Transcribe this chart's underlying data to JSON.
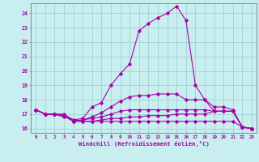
{
  "xlabel": "Windchill (Refroidissement éolien,°C)",
  "bg_color": "#c8eef0",
  "grid_color": "#99cccc",
  "line_color": "#aa00aa",
  "xlim": [
    -0.5,
    23.5
  ],
  "ylim": [
    15.7,
    24.7
  ],
  "yticks": [
    16,
    17,
    18,
    19,
    20,
    21,
    22,
    23,
    24
  ],
  "xticks": [
    0,
    1,
    2,
    3,
    4,
    5,
    6,
    7,
    8,
    9,
    10,
    11,
    12,
    13,
    14,
    15,
    16,
    17,
    18,
    19,
    20,
    21,
    22,
    23
  ],
  "lines": [
    {
      "x": [
        0,
        1,
        2,
        3,
        4,
        5,
        6,
        7,
        8,
        9,
        10,
        11,
        12,
        13,
        14,
        15,
        16,
        17,
        18,
        19,
        20,
        21,
        22,
        23
      ],
      "y": [
        17.3,
        17.0,
        17.0,
        16.8,
        16.6,
        16.7,
        17.5,
        17.8,
        19.0,
        19.8,
        20.5,
        22.8,
        23.3,
        23.7,
        24.0,
        24.5,
        23.5,
        19.0,
        18.0,
        17.2,
        17.2,
        17.2,
        16.1,
        16.0
      ]
    },
    {
      "x": [
        0,
        1,
        2,
        3,
        4,
        5,
        6,
        7,
        8,
        9,
        10,
        11,
        12,
        13,
        14,
        15,
        16,
        17,
        18,
        19,
        20,
        21,
        22,
        23
      ],
      "y": [
        17.3,
        17.0,
        17.0,
        16.9,
        16.5,
        16.6,
        16.8,
        17.1,
        17.5,
        17.9,
        18.2,
        18.3,
        18.3,
        18.4,
        18.4,
        18.4,
        18.0,
        18.0,
        18.0,
        17.5,
        17.5,
        17.3,
        16.1,
        16.0
      ]
    },
    {
      "x": [
        0,
        1,
        2,
        3,
        4,
        5,
        6,
        7,
        8,
        9,
        10,
        11,
        12,
        13,
        14,
        15,
        16,
        17,
        18,
        19,
        20,
        21,
        22,
        23
      ],
      "y": [
        17.3,
        17.0,
        17.0,
        16.9,
        16.5,
        16.6,
        16.7,
        16.8,
        17.0,
        17.2,
        17.3,
        17.3,
        17.3,
        17.3,
        17.3,
        17.3,
        17.3,
        17.3,
        17.3,
        17.2,
        17.2,
        17.2,
        16.1,
        16.0
      ]
    },
    {
      "x": [
        0,
        1,
        2,
        3,
        4,
        5,
        6,
        7,
        8,
        9,
        10,
        11,
        12,
        13,
        14,
        15,
        16,
        17,
        18,
        19,
        20,
        21,
        22,
        23
      ],
      "y": [
        17.3,
        17.0,
        17.0,
        16.9,
        16.5,
        16.5,
        16.5,
        16.6,
        16.7,
        16.7,
        16.8,
        16.8,
        16.9,
        16.9,
        16.9,
        17.0,
        17.0,
        17.0,
        17.0,
        17.2,
        17.2,
        17.2,
        16.1,
        16.0
      ]
    },
    {
      "x": [
        0,
        1,
        2,
        3,
        4,
        5,
        6,
        7,
        8,
        9,
        10,
        11,
        12,
        13,
        14,
        15,
        16,
        17,
        18,
        19,
        20,
        21,
        22,
        23
      ],
      "y": [
        17.3,
        17.0,
        17.0,
        17.0,
        16.6,
        16.5,
        16.5,
        16.5,
        16.5,
        16.5,
        16.5,
        16.5,
        16.5,
        16.5,
        16.5,
        16.5,
        16.5,
        16.5,
        16.5,
        16.5,
        16.5,
        16.5,
        16.1,
        16.0
      ]
    }
  ]
}
